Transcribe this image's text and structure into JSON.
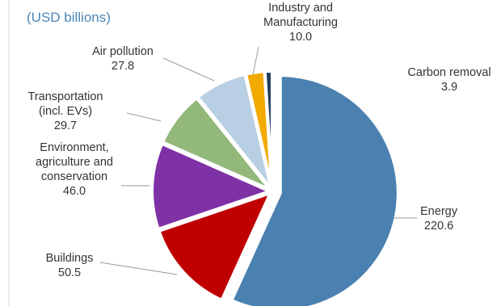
{
  "chart_data": {
    "type": "pie",
    "subtitle": "(USD billions)",
    "slices": [
      {
        "label": [
          "Energy"
        ],
        "value": 220.6,
        "value_text": "220.6",
        "color": "#4a81b0"
      },
      {
        "label": [
          "Buildings"
        ],
        "value": 50.5,
        "value_text": "50.5",
        "color": "#c00000"
      },
      {
        "label": [
          "Environment,",
          "agriculture and",
          "conservation"
        ],
        "value": 46.0,
        "value_text": "46.0",
        "color": "#7f31a6"
      },
      {
        "label": [
          "Transportation",
          "(incl. EVs)"
        ],
        "value": 29.7,
        "value_text": "29.7",
        "color": "#92b87a"
      },
      {
        "label": [
          "Air pollution"
        ],
        "value": 27.8,
        "value_text": "27.8",
        "color": "#b8cfe4"
      },
      {
        "label": [
          "Industry and",
          "Manufacturing"
        ],
        "value": 10.0,
        "value_text": "10.0",
        "color": "#f2a900"
      },
      {
        "label": [
          "Carbon removal"
        ],
        "value": 3.9,
        "value_text": "3.9",
        "color": "#1f3b5a"
      }
    ]
  }
}
